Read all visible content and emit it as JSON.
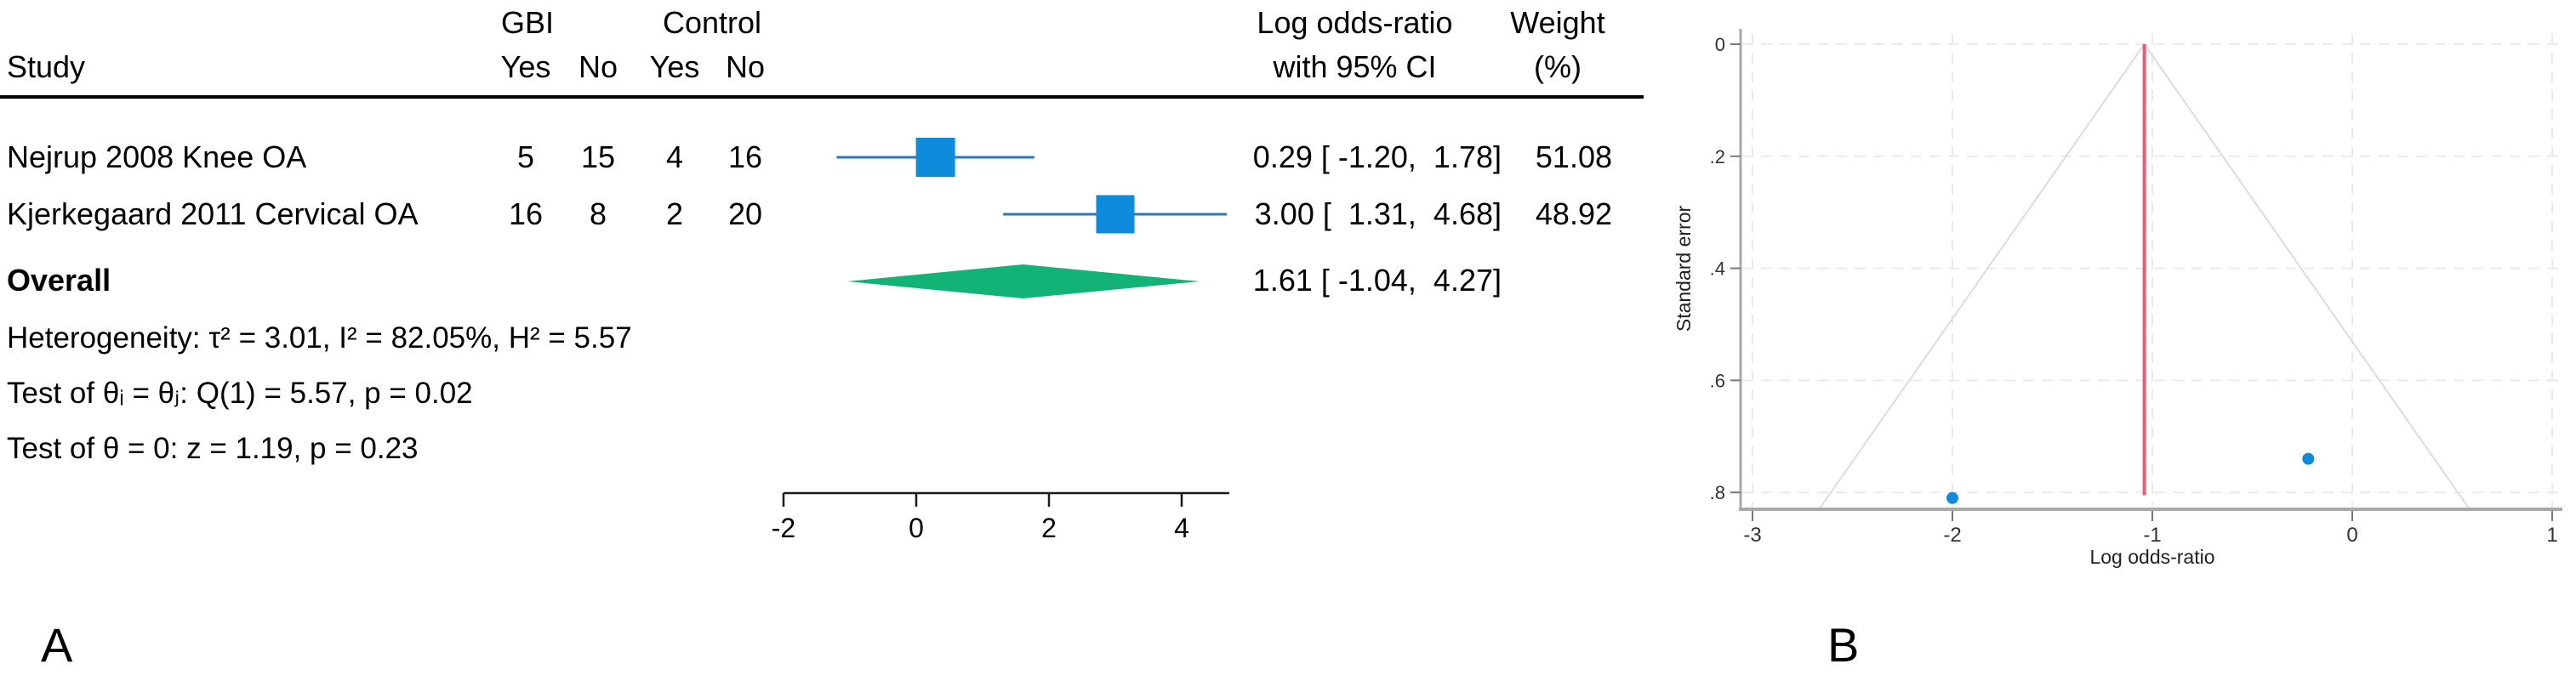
{
  "panel_a": {
    "label": "A",
    "header": {
      "study": "Study",
      "group1": "GBI",
      "group2": "Control",
      "yes1": "Yes",
      "no1": "No",
      "yes2": "Yes",
      "no2": "No",
      "effect_line1": "Log odds-ratio",
      "effect_line2": "with 95% CI",
      "weight_line1": "Weight",
      "weight_line2": "(%)"
    },
    "rows": [
      {
        "study": "Nejrup 2008 Knee OA",
        "gbi_yes": "5",
        "gbi_no": "15",
        "control_yes": "4",
        "control_no": "16",
        "effect": "0.29 [ -1.20,  1.78]",
        "weight": "51.08"
      },
      {
        "study": "Kjerkegaard 2011 Cervical OA",
        "gbi_yes": "16",
        "gbi_no": "8",
        "control_yes": "2",
        "control_no": "20",
        "effect": "3.00 [  1.31,  4.68]",
        "weight": "48.92"
      }
    ],
    "overall": {
      "label": "Overall",
      "effect": "1.61 [ -1.04,  4.27]"
    },
    "stats": {
      "heterogeneity": "Heterogeneity: τ² = 3.01, I² = 82.05%, H² = 5.57",
      "test_group": "Test of θᵢ = θⱼ: Q(1) = 5.57, p = 0.02",
      "test_overall": "Test of θ = 0: z = 1.19, p = 0.23"
    }
  },
  "panel_b": {
    "label": "B",
    "xlabel": "Log odds-ratio",
    "ylabel": "Standard error"
  },
  "chart_data": [
    {
      "type": "forest",
      "title": "",
      "xlabel": "",
      "x_ticks": [
        -2,
        0,
        2,
        4
      ],
      "xlim": [
        -2,
        4.7
      ],
      "studies": [
        {
          "name": "Nejrup 2008 Knee OA",
          "est": 0.29,
          "ci_low": -1.2,
          "ci_high": 1.78,
          "weight_pct": 51.08
        },
        {
          "name": "Kjerkegaard 2011 Cervical OA",
          "est": 3.0,
          "ci_low": 1.31,
          "ci_high": 4.68,
          "weight_pct": 48.92
        }
      ],
      "overall": {
        "est": 1.61,
        "ci_low": -1.04,
        "ci_high": 4.27
      },
      "heterogeneity": {
        "tau2": 3.01,
        "I2_pct": 82.05,
        "H2": 5.57
      },
      "test_group_diff": {
        "Q_df": 1,
        "Q": 5.57,
        "p": 0.02
      },
      "test_overall": {
        "z": 1.19,
        "p": 0.23
      },
      "colors": {
        "marker": "#0e8cdb",
        "ci_line": "#2878b8",
        "diamond": "#13b377",
        "axis": "#1a1a1a"
      }
    },
    {
      "type": "scatter",
      "subtype": "funnel",
      "title": "",
      "xlabel": "Log odds-ratio",
      "ylabel": "Standard error",
      "x_ticks": [
        -3,
        -2,
        -1,
        0,
        1
      ],
      "y_ticks": [
        0,
        0.2,
        0.4,
        0.6,
        0.8
      ],
      "y_tick_labels": [
        "0",
        ".2",
        ".4",
        ".6",
        ".8"
      ],
      "xlim": [
        -3.06,
        1.05
      ],
      "ylim": [
        0,
        0.83
      ],
      "y_inverted": true,
      "grid": true,
      "legend": false,
      "points": [
        {
          "x": -2.0,
          "y": 0.81
        },
        {
          "x": -0.22,
          "y": 0.74
        }
      ],
      "estimate_line": {
        "x": -1.04
      },
      "pseudo_ci": {
        "apex_x": -1.04,
        "multiplier": 1.96
      },
      "colors": {
        "point": "#0e8cdb",
        "estimate_line": "#e0607a",
        "pseudo_ci": "#dcdcdc",
        "grid": "#eaeaea",
        "axis": "#a9a9a9",
        "tick": "#777777"
      }
    }
  ]
}
